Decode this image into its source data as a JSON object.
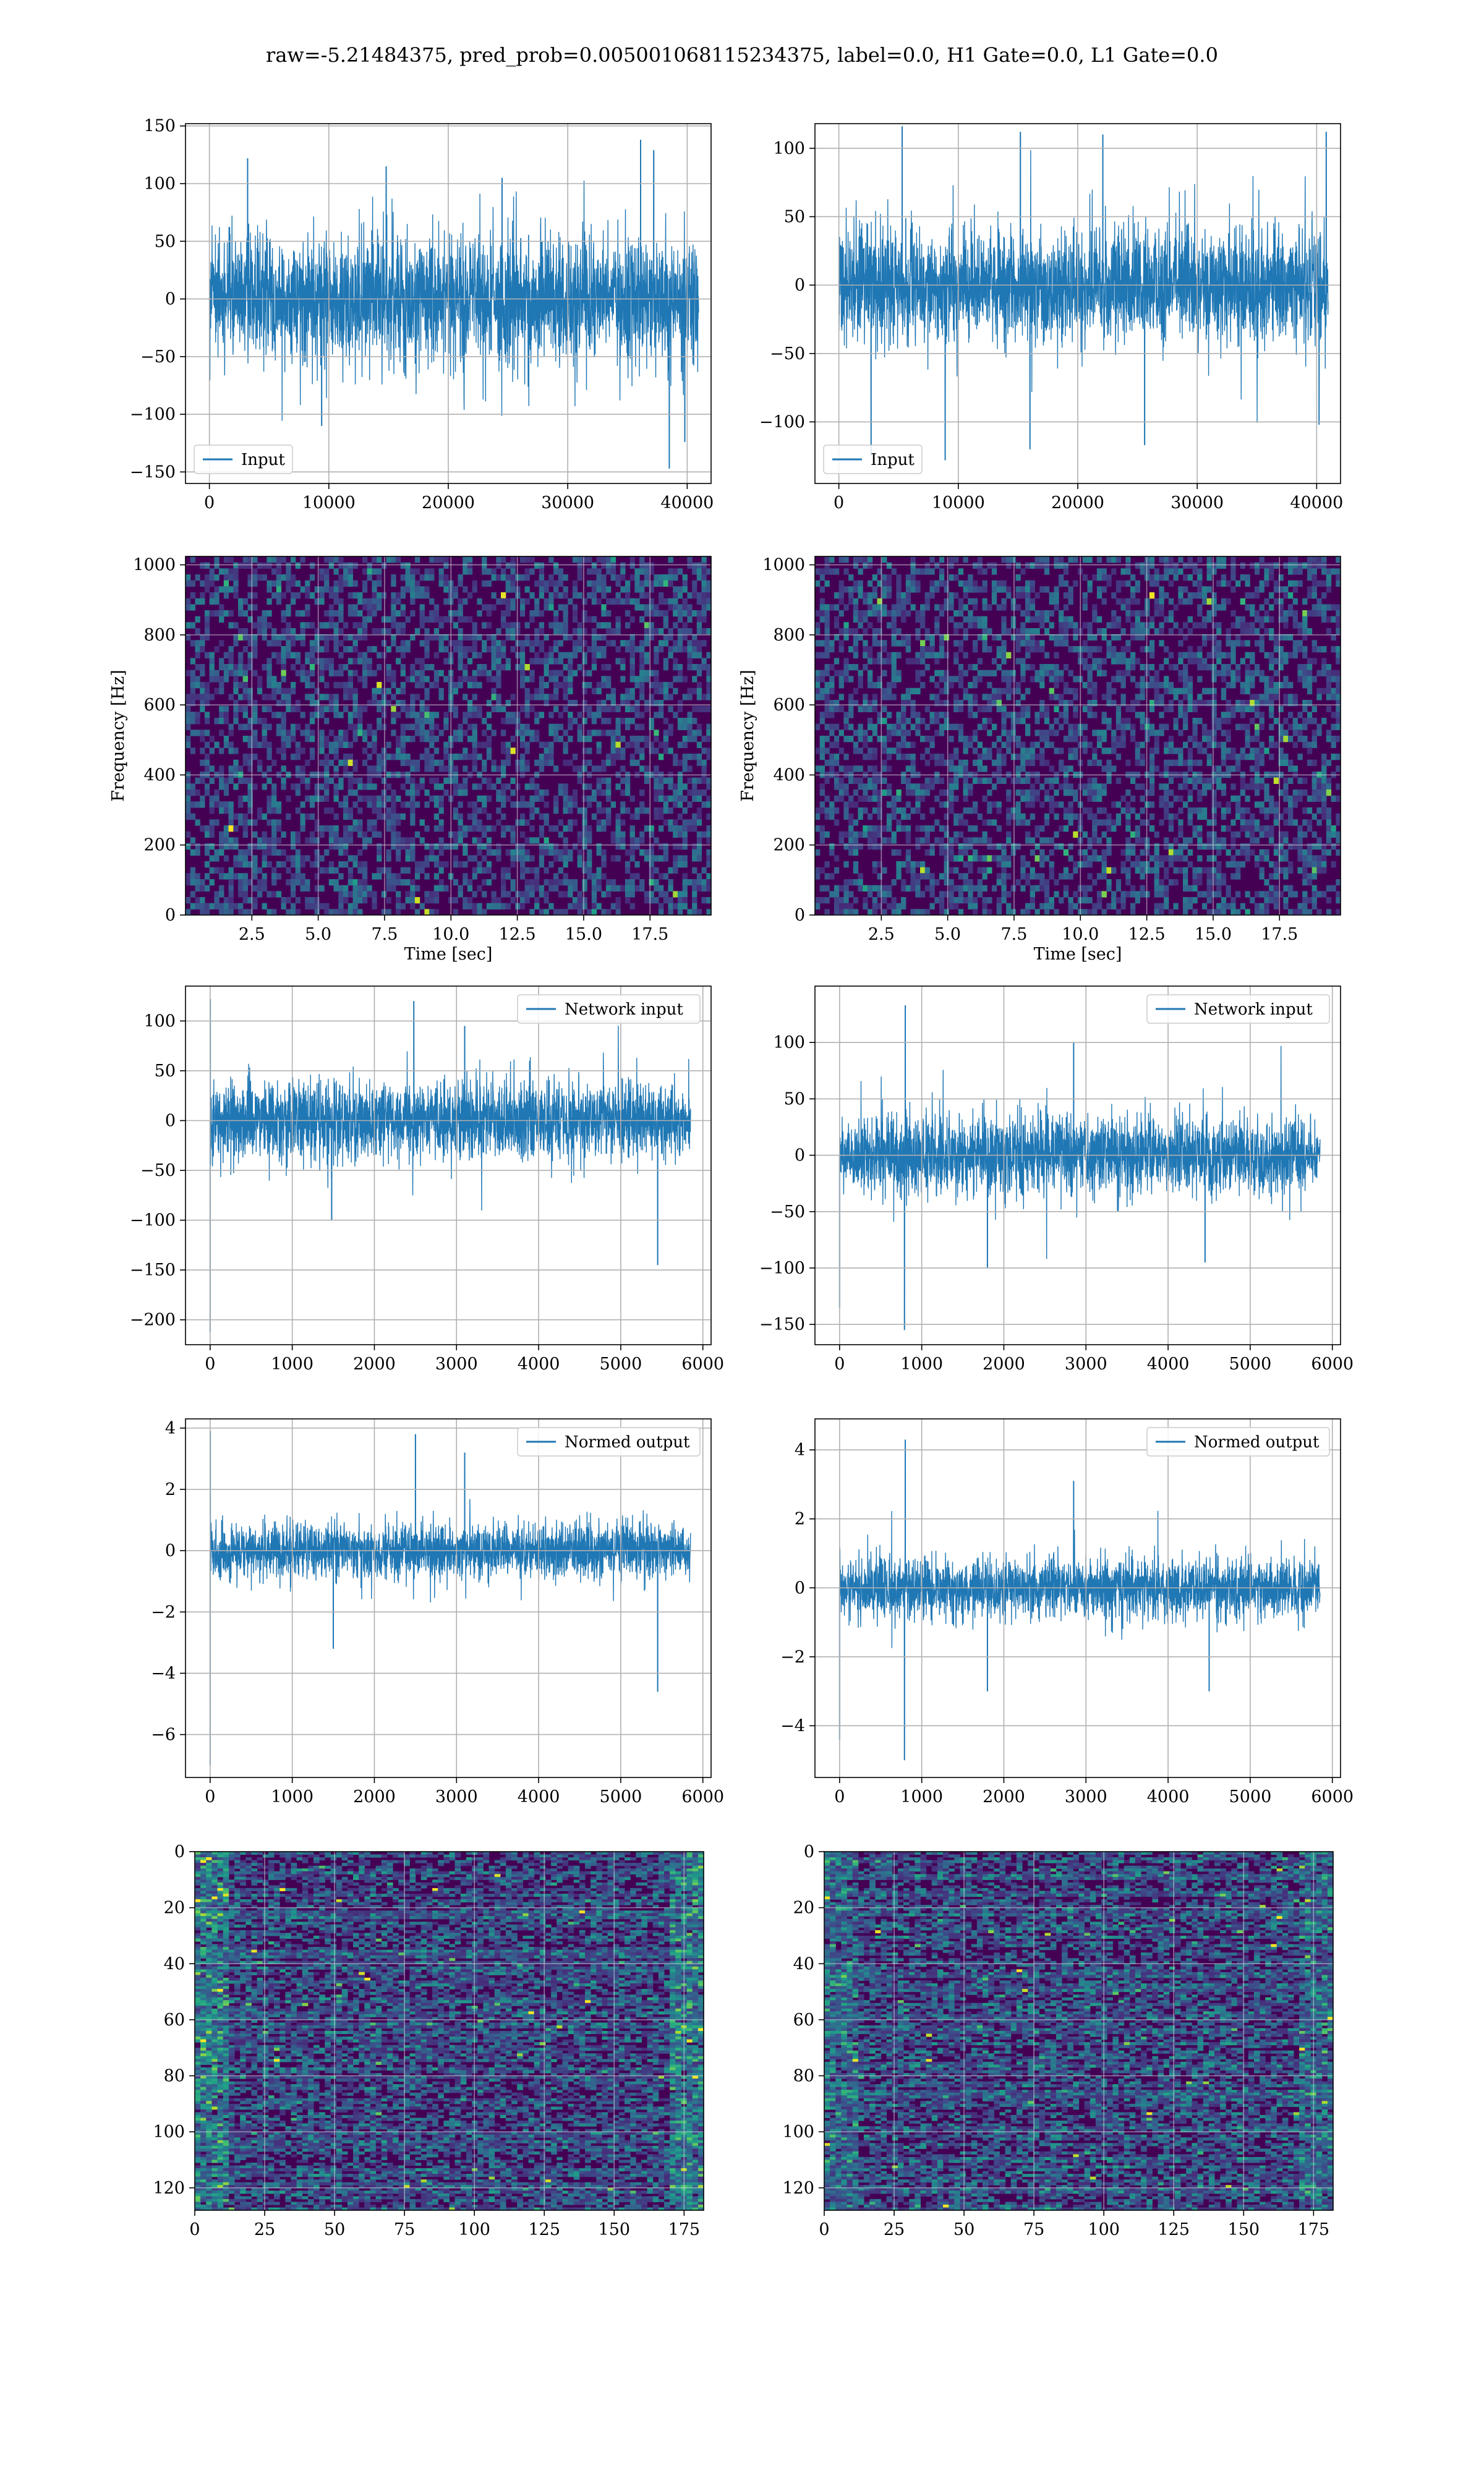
{
  "figure": {
    "title": "raw=-5.21484375, pred_prob=0.005001068115234375, label=0.0, H1 Gate=0.0, L1 Gate=0.0"
  },
  "colors": {
    "series": "#1f77b4",
    "grid": "#b0b0b0",
    "viridis_low": "#440154",
    "viridis_high": "#fde725"
  },
  "chart_data": [
    {
      "id": "h1-input",
      "type": "line",
      "legend": [
        "Input"
      ],
      "legend_loc": "lower left",
      "xlim": [
        -2000,
        42000
      ],
      "ylim": [
        -160,
        152
      ],
      "x_ticks": [
        0,
        10000,
        20000,
        30000,
        40000
      ],
      "y_ticks": [
        -150,
        -100,
        -50,
        0,
        50,
        100,
        150
      ],
      "x_range": [
        0,
        40960
      ],
      "envelope": {
        "typical_low": -62,
        "typical_high": 62,
        "max": 138,
        "min": -147
      },
      "spikes": [
        [
          3200,
          122
        ],
        [
          14800,
          115
        ],
        [
          24500,
          105
        ],
        [
          36100,
          138
        ],
        [
          37200,
          129
        ],
        [
          38500,
          -147
        ],
        [
          39800,
          -124
        ],
        [
          9400,
          -110
        ]
      ],
      "grid": true
    },
    {
      "id": "l1-input",
      "type": "line",
      "legend": [
        "Input"
      ],
      "legend_loc": "lower left",
      "xlim": [
        -2000,
        42000
      ],
      "ylim": [
        -145,
        118
      ],
      "x_ticks": [
        0,
        10000,
        20000,
        30000,
        40000
      ],
      "y_ticks": [
        -100,
        -50,
        0,
        50,
        100
      ],
      "x_range": [
        0,
        40960
      ],
      "envelope": {
        "typical_low": -48,
        "typical_high": 48,
        "max": 116,
        "min": -130
      },
      "spikes": [
        [
          5300,
          116
        ],
        [
          15200,
          112
        ],
        [
          22100,
          110
        ],
        [
          2700,
          -125
        ],
        [
          8900,
          -128
        ],
        [
          16000,
          -120
        ],
        [
          25600,
          -117
        ],
        [
          40200,
          -102
        ],
        [
          40800,
          112
        ]
      ],
      "grid": true
    },
    {
      "id": "h1-spectrogram",
      "type": "heatmap",
      "colormap": "viridis",
      "xlabel": "Time [sec]",
      "ylabel": "Frequency [Hz]",
      "xlim": [
        0,
        19.8
      ],
      "ylim": [
        0,
        1024
      ],
      "x_ticks": [
        2.5,
        5.0,
        7.5,
        10.0,
        12.5,
        15.0,
        17.5
      ],
      "y_ticks": [
        0,
        200,
        400,
        600,
        800,
        1000
      ],
      "grid": true
    },
    {
      "id": "l1-spectrogram",
      "type": "heatmap",
      "colormap": "viridis",
      "xlabel": "Time [sec]",
      "ylabel": "Frequency [Hz]",
      "xlim": [
        0,
        19.8
      ],
      "ylim": [
        0,
        1024
      ],
      "x_ticks": [
        2.5,
        5.0,
        7.5,
        10.0,
        12.5,
        15.0,
        17.5
      ],
      "y_ticks": [
        0,
        200,
        400,
        600,
        800,
        1000
      ],
      "grid": true
    },
    {
      "id": "h1-network-input",
      "type": "line",
      "legend": [
        "Network input"
      ],
      "legend_loc": "upper right",
      "xlim": [
        -300,
        6100
      ],
      "ylim": [
        -225,
        135
      ],
      "x_ticks": [
        0,
        1000,
        2000,
        3000,
        4000,
        5000,
        6000
      ],
      "y_ticks": [
        -200,
        -150,
        -100,
        -50,
        0,
        50,
        100
      ],
      "x_range": [
        0,
        5850
      ],
      "envelope": {
        "typical_low": -45,
        "typical_high": 45,
        "max": 122,
        "min": -212
      },
      "spikes": [
        [
          0,
          -212
        ],
        [
          2,
          122
        ],
        [
          2480,
          120
        ],
        [
          5450,
          -145
        ],
        [
          1480,
          -100
        ],
        [
          3100,
          95
        ]
      ],
      "grid": true
    },
    {
      "id": "l1-network-input",
      "type": "line",
      "legend": [
        "Network input"
      ],
      "legend_loc": "upper right",
      "xlim": [
        -300,
        6100
      ],
      "ylim": [
        -168,
        150
      ],
      "x_ticks": [
        0,
        1000,
        2000,
        3000,
        4000,
        5000,
        6000
      ],
      "y_ticks": [
        -150,
        -100,
        -50,
        0,
        50,
        100
      ],
      "x_range": [
        0,
        5850
      ],
      "envelope": {
        "typical_low": -40,
        "typical_high": 40,
        "max": 133,
        "min": -155
      },
      "spikes": [
        [
          800,
          133
        ],
        [
          790,
          -155
        ],
        [
          0,
          -135
        ],
        [
          1800,
          -100
        ],
        [
          2850,
          100
        ],
        [
          4450,
          -95
        ]
      ],
      "grid": true
    },
    {
      "id": "h1-normed-output",
      "type": "line",
      "legend": [
        "Normed output"
      ],
      "legend_loc": "upper right",
      "xlim": [
        -300,
        6100
      ],
      "ylim": [
        -7.4,
        4.3
      ],
      "x_ticks": [
        0,
        1000,
        2000,
        3000,
        4000,
        5000,
        6000
      ],
      "y_ticks": [
        -6,
        -4,
        -2,
        0,
        2,
        4
      ],
      "x_range": [
        0,
        5850
      ],
      "envelope": {
        "typical_low": -1.0,
        "typical_high": 1.0,
        "max": 3.9,
        "min": -7.0
      },
      "spikes": [
        [
          0,
          -7.0
        ],
        [
          2,
          3.9
        ],
        [
          2500,
          3.8
        ],
        [
          5450,
          -4.6
        ],
        [
          1500,
          -3.2
        ],
        [
          3100,
          3.2
        ]
      ],
      "grid": true
    },
    {
      "id": "l1-normed-output",
      "type": "line",
      "legend": [
        "Normed output"
      ],
      "legend_loc": "upper right",
      "xlim": [
        -300,
        6100
      ],
      "ylim": [
        -5.5,
        4.9
      ],
      "x_ticks": [
        0,
        1000,
        2000,
        3000,
        4000,
        5000,
        6000
      ],
      "y_ticks": [
        -4,
        -2,
        0,
        2,
        4
      ],
      "x_range": [
        0,
        5850
      ],
      "envelope": {
        "typical_low": -1.0,
        "typical_high": 1.0,
        "max": 4.3,
        "min": -5.0
      },
      "spikes": [
        [
          800,
          4.3
        ],
        [
          790,
          -5.0
        ],
        [
          0,
          -4.4
        ],
        [
          1800,
          -3.0
        ],
        [
          2850,
          3.1
        ],
        [
          4500,
          -3.0
        ]
      ],
      "grid": true
    },
    {
      "id": "h1-feature-map",
      "type": "heatmap",
      "colormap": "viridis",
      "xlim": [
        0,
        182
      ],
      "ylim": [
        128,
        0
      ],
      "x_ticks": [
        0,
        25,
        50,
        75,
        100,
        125,
        150,
        175
      ],
      "y_ticks": [
        0,
        20,
        40,
        60,
        80,
        100,
        120
      ],
      "grid": true
    },
    {
      "id": "l1-feature-map",
      "type": "heatmap",
      "colormap": "viridis",
      "xlim": [
        0,
        182
      ],
      "ylim": [
        128,
        0
      ],
      "x_ticks": [
        0,
        25,
        50,
        75,
        100,
        125,
        150,
        175
      ],
      "y_ticks": [
        0,
        20,
        40,
        60,
        80,
        100,
        120
      ],
      "grid": true
    }
  ]
}
